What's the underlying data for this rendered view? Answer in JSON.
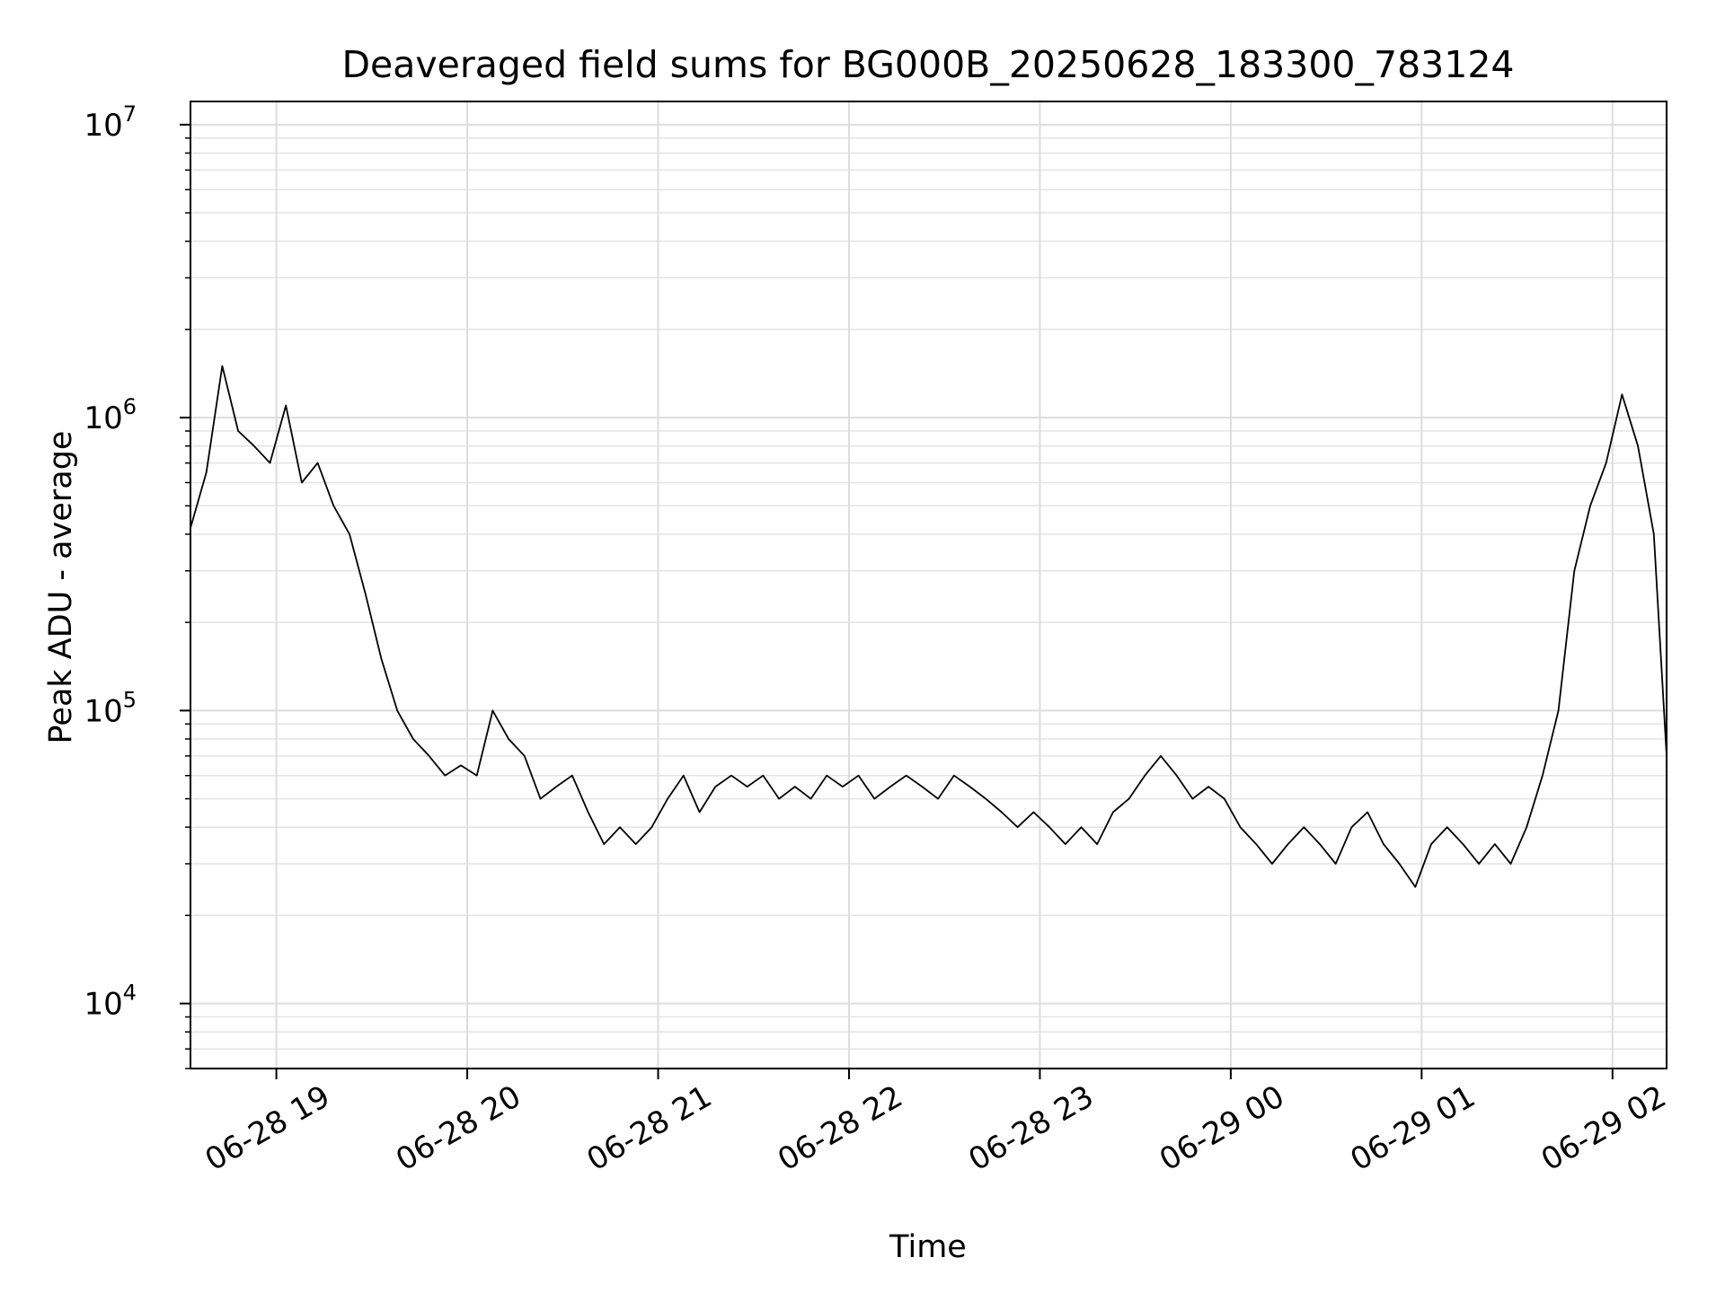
{
  "chart_data": {
    "type": "line",
    "title": "Deaveraged field sums for BG000B_20250628_183300_783124",
    "xlabel": "Time",
    "ylabel": "Peak ADU - average",
    "yscale": "log",
    "ylim": [
      6000,
      12000000
    ],
    "xlim": [
      "2025-06-28 18:33",
      "2025-06-29 02:17"
    ],
    "grid": true,
    "line_color": "#000000",
    "x_ticks": [
      {
        "value": "2025-06-28 19:00",
        "label": "06-28 19"
      },
      {
        "value": "2025-06-28 20:00",
        "label": "06-28 20"
      },
      {
        "value": "2025-06-28 21:00",
        "label": "06-28 21"
      },
      {
        "value": "2025-06-28 22:00",
        "label": "06-28 22"
      },
      {
        "value": "2025-06-28 23:00",
        "label": "06-28 23"
      },
      {
        "value": "2025-06-29 00:00",
        "label": "06-29 00"
      },
      {
        "value": "2025-06-29 01:00",
        "label": "06-29 01"
      },
      {
        "value": "2025-06-29 02:00",
        "label": "06-29 02"
      }
    ],
    "y_ticks": [
      {
        "value": 10000,
        "base": "10",
        "exp": "4"
      },
      {
        "value": 100000,
        "base": "10",
        "exp": "5"
      },
      {
        "value": 1000000,
        "base": "10",
        "exp": "6"
      },
      {
        "value": 10000000,
        "base": "10",
        "exp": "7"
      }
    ],
    "series": [
      {
        "points": [
          [
            "2025-06-28 18:33",
            420000
          ],
          [
            "2025-06-28 18:38",
            650000
          ],
          [
            "2025-06-28 18:43",
            1500000
          ],
          [
            "2025-06-28 18:48",
            900000
          ],
          [
            "2025-06-28 18:53",
            800000
          ],
          [
            "2025-06-28 18:58",
            700000
          ],
          [
            "2025-06-28 19:03",
            1100000
          ],
          [
            "2025-06-28 19:08",
            600000
          ],
          [
            "2025-06-28 19:13",
            700000
          ],
          [
            "2025-06-28 19:18",
            500000
          ],
          [
            "2025-06-28 19:23",
            400000
          ],
          [
            "2025-06-28 19:28",
            250000
          ],
          [
            "2025-06-28 19:33",
            150000
          ],
          [
            "2025-06-28 19:38",
            100000
          ],
          [
            "2025-06-28 19:43",
            80000
          ],
          [
            "2025-06-28 19:48",
            70000
          ],
          [
            "2025-06-28 19:53",
            60000
          ],
          [
            "2025-06-28 19:58",
            65000
          ],
          [
            "2025-06-28 20:03",
            60000
          ],
          [
            "2025-06-28 20:08",
            100000
          ],
          [
            "2025-06-28 20:13",
            80000
          ],
          [
            "2025-06-28 20:18",
            70000
          ],
          [
            "2025-06-28 20:23",
            50000
          ],
          [
            "2025-06-28 20:28",
            55000
          ],
          [
            "2025-06-28 20:33",
            60000
          ],
          [
            "2025-06-28 20:38",
            45000
          ],
          [
            "2025-06-28 20:43",
            35000
          ],
          [
            "2025-06-28 20:48",
            40000
          ],
          [
            "2025-06-28 20:53",
            35000
          ],
          [
            "2025-06-28 20:58",
            40000
          ],
          [
            "2025-06-28 21:03",
            50000
          ],
          [
            "2025-06-28 21:08",
            60000
          ],
          [
            "2025-06-28 21:13",
            45000
          ],
          [
            "2025-06-28 21:18",
            55000
          ],
          [
            "2025-06-28 21:23",
            60000
          ],
          [
            "2025-06-28 21:28",
            55000
          ],
          [
            "2025-06-28 21:33",
            60000
          ],
          [
            "2025-06-28 21:38",
            50000
          ],
          [
            "2025-06-28 21:43",
            55000
          ],
          [
            "2025-06-28 21:48",
            50000
          ],
          [
            "2025-06-28 21:53",
            60000
          ],
          [
            "2025-06-28 21:58",
            55000
          ],
          [
            "2025-06-28 22:03",
            60000
          ],
          [
            "2025-06-28 22:08",
            50000
          ],
          [
            "2025-06-28 22:13",
            55000
          ],
          [
            "2025-06-28 22:18",
            60000
          ],
          [
            "2025-06-28 22:23",
            55000
          ],
          [
            "2025-06-28 22:28",
            50000
          ],
          [
            "2025-06-28 22:33",
            60000
          ],
          [
            "2025-06-28 22:38",
            55000
          ],
          [
            "2025-06-28 22:43",
            50000
          ],
          [
            "2025-06-28 22:48",
            45000
          ],
          [
            "2025-06-28 22:53",
            40000
          ],
          [
            "2025-06-28 22:58",
            45000
          ],
          [
            "2025-06-28 23:03",
            40000
          ],
          [
            "2025-06-28 23:08",
            35000
          ],
          [
            "2025-06-28 23:13",
            40000
          ],
          [
            "2025-06-28 23:18",
            35000
          ],
          [
            "2025-06-28 23:23",
            45000
          ],
          [
            "2025-06-28 23:28",
            50000
          ],
          [
            "2025-06-28 23:33",
            60000
          ],
          [
            "2025-06-28 23:38",
            70000
          ],
          [
            "2025-06-28 23:43",
            60000
          ],
          [
            "2025-06-28 23:48",
            50000
          ],
          [
            "2025-06-28 23:53",
            55000
          ],
          [
            "2025-06-28 23:58",
            50000
          ],
          [
            "2025-06-29 00:03",
            40000
          ],
          [
            "2025-06-29 00:08",
            35000
          ],
          [
            "2025-06-29 00:13",
            30000
          ],
          [
            "2025-06-29 00:18",
            35000
          ],
          [
            "2025-06-29 00:23",
            40000
          ],
          [
            "2025-06-29 00:28",
            35000
          ],
          [
            "2025-06-29 00:33",
            30000
          ],
          [
            "2025-06-29 00:38",
            40000
          ],
          [
            "2025-06-29 00:43",
            45000
          ],
          [
            "2025-06-29 00:48",
            35000
          ],
          [
            "2025-06-29 00:53",
            30000
          ],
          [
            "2025-06-29 00:58",
            25000
          ],
          [
            "2025-06-29 01:03",
            35000
          ],
          [
            "2025-06-29 01:08",
            40000
          ],
          [
            "2025-06-29 01:13",
            35000
          ],
          [
            "2025-06-29 01:18",
            30000
          ],
          [
            "2025-06-29 01:23",
            35000
          ],
          [
            "2025-06-29 01:28",
            30000
          ],
          [
            "2025-06-29 01:33",
            40000
          ],
          [
            "2025-06-29 01:38",
            60000
          ],
          [
            "2025-06-29 01:43",
            100000
          ],
          [
            "2025-06-29 01:48",
            300000
          ],
          [
            "2025-06-29 01:53",
            500000
          ],
          [
            "2025-06-29 01:58",
            700000
          ],
          [
            "2025-06-29 02:03",
            1200000
          ],
          [
            "2025-06-29 02:08",
            800000
          ],
          [
            "2025-06-29 02:13",
            400000
          ],
          [
            "2025-06-29 02:17",
            70000
          ]
        ]
      }
    ]
  }
}
